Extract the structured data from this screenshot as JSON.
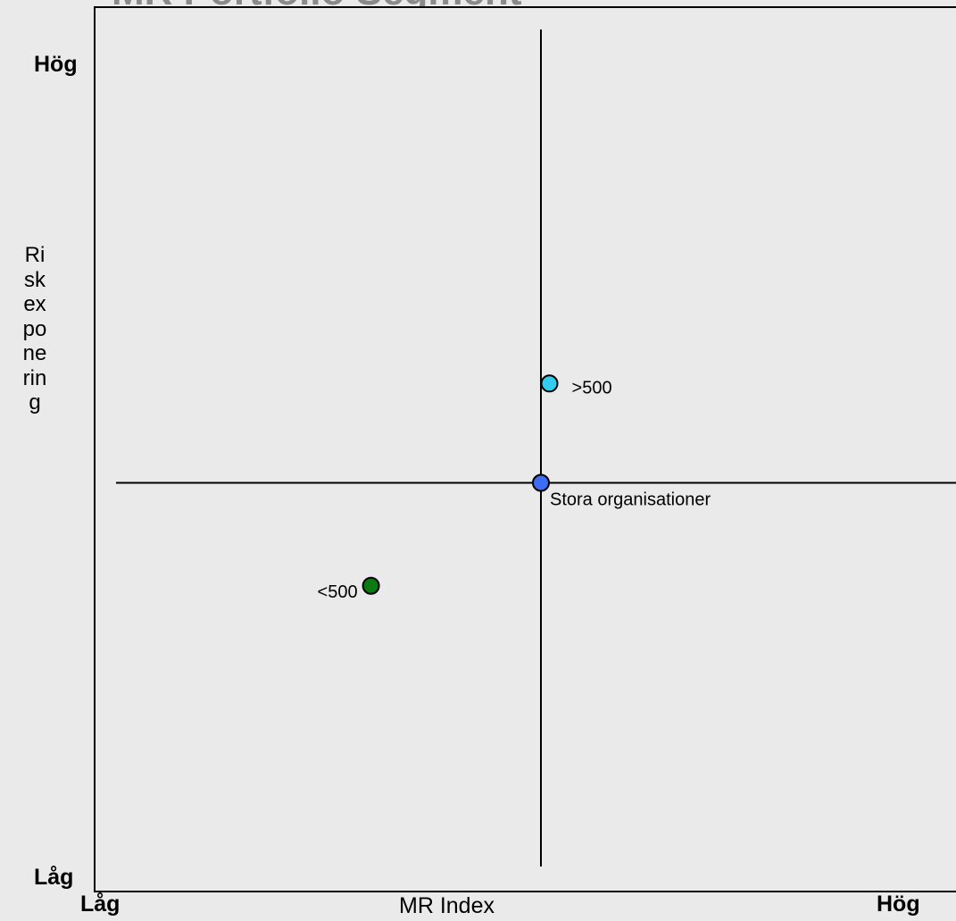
{
  "title_fragment": "MR Portfolio Segment",
  "chart_data": {
    "type": "scatter",
    "title": "",
    "xlabel": "MR Index",
    "ylabel": "Riskexponering",
    "x_low_label": "Låg",
    "x_high_label": "Hög",
    "y_low_label": "Låg",
    "y_high_label": "Hög",
    "xlim": [
      0,
      100
    ],
    "ylim": [
      0,
      100
    ],
    "grid": false,
    "quadrant_lines": {
      "x": 50,
      "y": 50
    },
    "points": [
      {
        "label": ">500",
        "x": 51.0,
        "y": 61.0,
        "color": "#33ccee",
        "label_side": "right"
      },
      {
        "label": "Stora organisationer",
        "x": 50.0,
        "y": 50.0,
        "color": "#3d6df5",
        "label_side": "below-right"
      },
      {
        "label": "<500",
        "x": 30.0,
        "y": 38.6,
        "color": "#0b7a12",
        "label_side": "left"
      }
    ]
  }
}
